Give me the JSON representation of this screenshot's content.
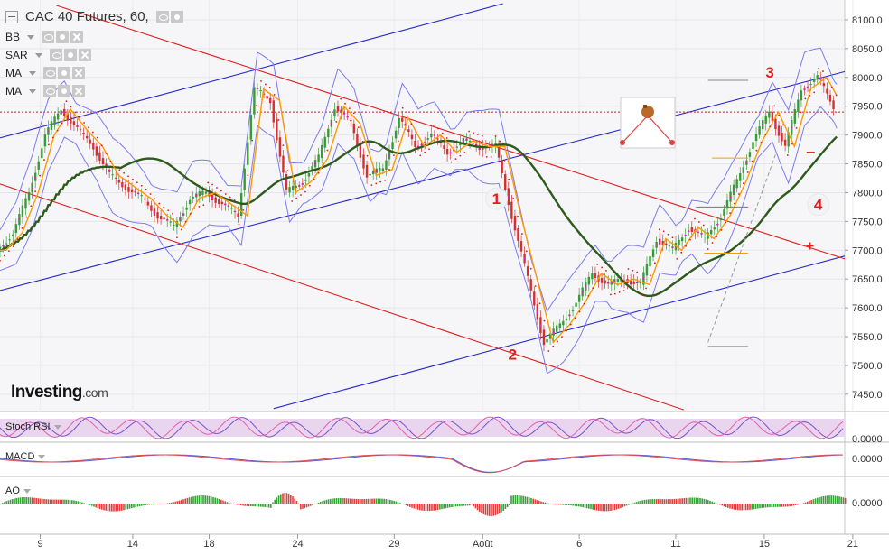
{
  "header": {
    "title": "CAC 40 Futures, 60,",
    "indicators": [
      "BB",
      "SAR",
      "MA",
      "MA"
    ]
  },
  "logo": {
    "name": "Investing",
    "suffix": ".com"
  },
  "chart_data": {
    "type": "line",
    "title": "CAC 40 Futures, 60,",
    "xlabel": "",
    "ylabel": "",
    "x_ticks": [
      "9",
      "14",
      "18",
      "24",
      "29",
      "Août",
      "6",
      "11",
      "15",
      "21"
    ],
    "y_ticks": [
      7450,
      7500,
      7550,
      7600,
      7650,
      7700,
      7750,
      7800,
      7850,
      7900,
      7950,
      8000,
      8050,
      8100
    ],
    "ylim": [
      7420,
      8125
    ],
    "grid": true,
    "legend": "top-left",
    "series": [
      {
        "name": "",
        "x": [
          0,
          4,
          8,
          12,
          16,
          20,
          24,
          28,
          32,
          36,
          40,
          44,
          48,
          52,
          56,
          60,
          64,
          68,
          72,
          76,
          80,
          84,
          88,
          92,
          96,
          100,
          104,
          108,
          112,
          116,
          120,
          124,
          128,
          132,
          136,
          140,
          144,
          148,
          152,
          156,
          160,
          164,
          168,
          172,
          176,
          180,
          184,
          188,
          192,
          196,
          200,
          204,
          208
        ],
        "values": [
          7700,
          7730,
          7800,
          7900,
          7945,
          7910,
          7880,
          7830,
          7810,
          7790,
          7760,
          7740,
          7790,
          7800,
          7780,
          7760,
          7980,
          7960,
          7800,
          7820,
          7860,
          7950,
          7920,
          7830,
          7840,
          7930,
          7880,
          7900,
          7870,
          7890,
          7880,
          7880,
          7760,
          7650,
          7540,
          7570,
          7610,
          7660,
          7640,
          7650,
          7640,
          7720,
          7700,
          7740,
          7720,
          7760,
          7820,
          7890,
          7940,
          7880,
          7980,
          8000,
          7950
        ]
      }
    ],
    "stoch_rsi": {
      "label": "Stoch RSI",
      "tick": "0.0000"
    },
    "macd": {
      "label": "MACD",
      "tick": "0.0000"
    },
    "ao": {
      "label": "AO",
      "tick": "0.0000"
    },
    "annotations": [
      "1",
      "2",
      "3",
      "4",
      "−",
      "+"
    ],
    "colors": {
      "channel_blue": "#2b2bd0",
      "channel_red": "#e02020",
      "ma_green": "#2e5a1c",
      "bb": "#7b7bf0",
      "fast_ma": "#ff9900",
      "accent_magenta": "#e020c0"
    }
  }
}
